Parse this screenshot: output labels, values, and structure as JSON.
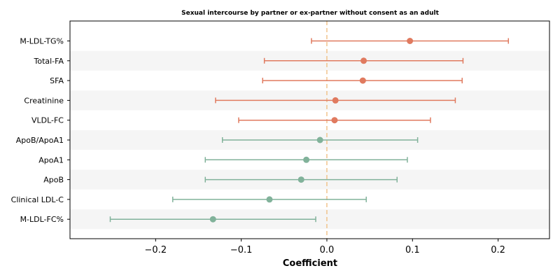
{
  "chart_data": {
    "type": "scatter",
    "title": "Sexual intercourse by partner or ex-partner without consent as an adult",
    "xlabel": "Coefficient",
    "ylabel": "",
    "xlim": [
      -0.3,
      0.26
    ],
    "xticks": [
      -0.2,
      -0.1,
      0.0,
      0.1,
      0.2
    ],
    "xtick_labels": [
      "−0.2",
      "−0.1",
      "0.0",
      "0.1",
      "0.2"
    ],
    "reference_line": 0,
    "alternating_row_shading": true,
    "colors": {
      "positive": "#e07a5f",
      "negative": "#81b29a",
      "reference": "#f2c48d",
      "band": "#f5f5f5"
    },
    "points": [
      {
        "label": "M-LDL-TG%",
        "coef": 0.097,
        "ci_low": -0.018,
        "ci_high": 0.212
      },
      {
        "label": "Total-FA",
        "coef": 0.043,
        "ci_low": -0.073,
        "ci_high": 0.159
      },
      {
        "label": "SFA",
        "coef": 0.042,
        "ci_low": -0.075,
        "ci_high": 0.158
      },
      {
        "label": "Creatinine",
        "coef": 0.01,
        "ci_low": -0.13,
        "ci_high": 0.15
      },
      {
        "label": "VLDL-FC",
        "coef": 0.009,
        "ci_low": -0.103,
        "ci_high": 0.121
      },
      {
        "label": "ApoB/ApoA1",
        "coef": -0.008,
        "ci_low": -0.122,
        "ci_high": 0.106
      },
      {
        "label": "ApoA1",
        "coef": -0.024,
        "ci_low": -0.142,
        "ci_high": 0.094
      },
      {
        "label": "ApoB",
        "coef": -0.03,
        "ci_low": -0.142,
        "ci_high": 0.082
      },
      {
        "label": "Clinical LDL-C",
        "coef": -0.067,
        "ci_low": -0.18,
        "ci_high": 0.046
      },
      {
        "label": "M-LDL-FC%",
        "coef": -0.133,
        "ci_low": -0.253,
        "ci_high": -0.013
      }
    ]
  }
}
